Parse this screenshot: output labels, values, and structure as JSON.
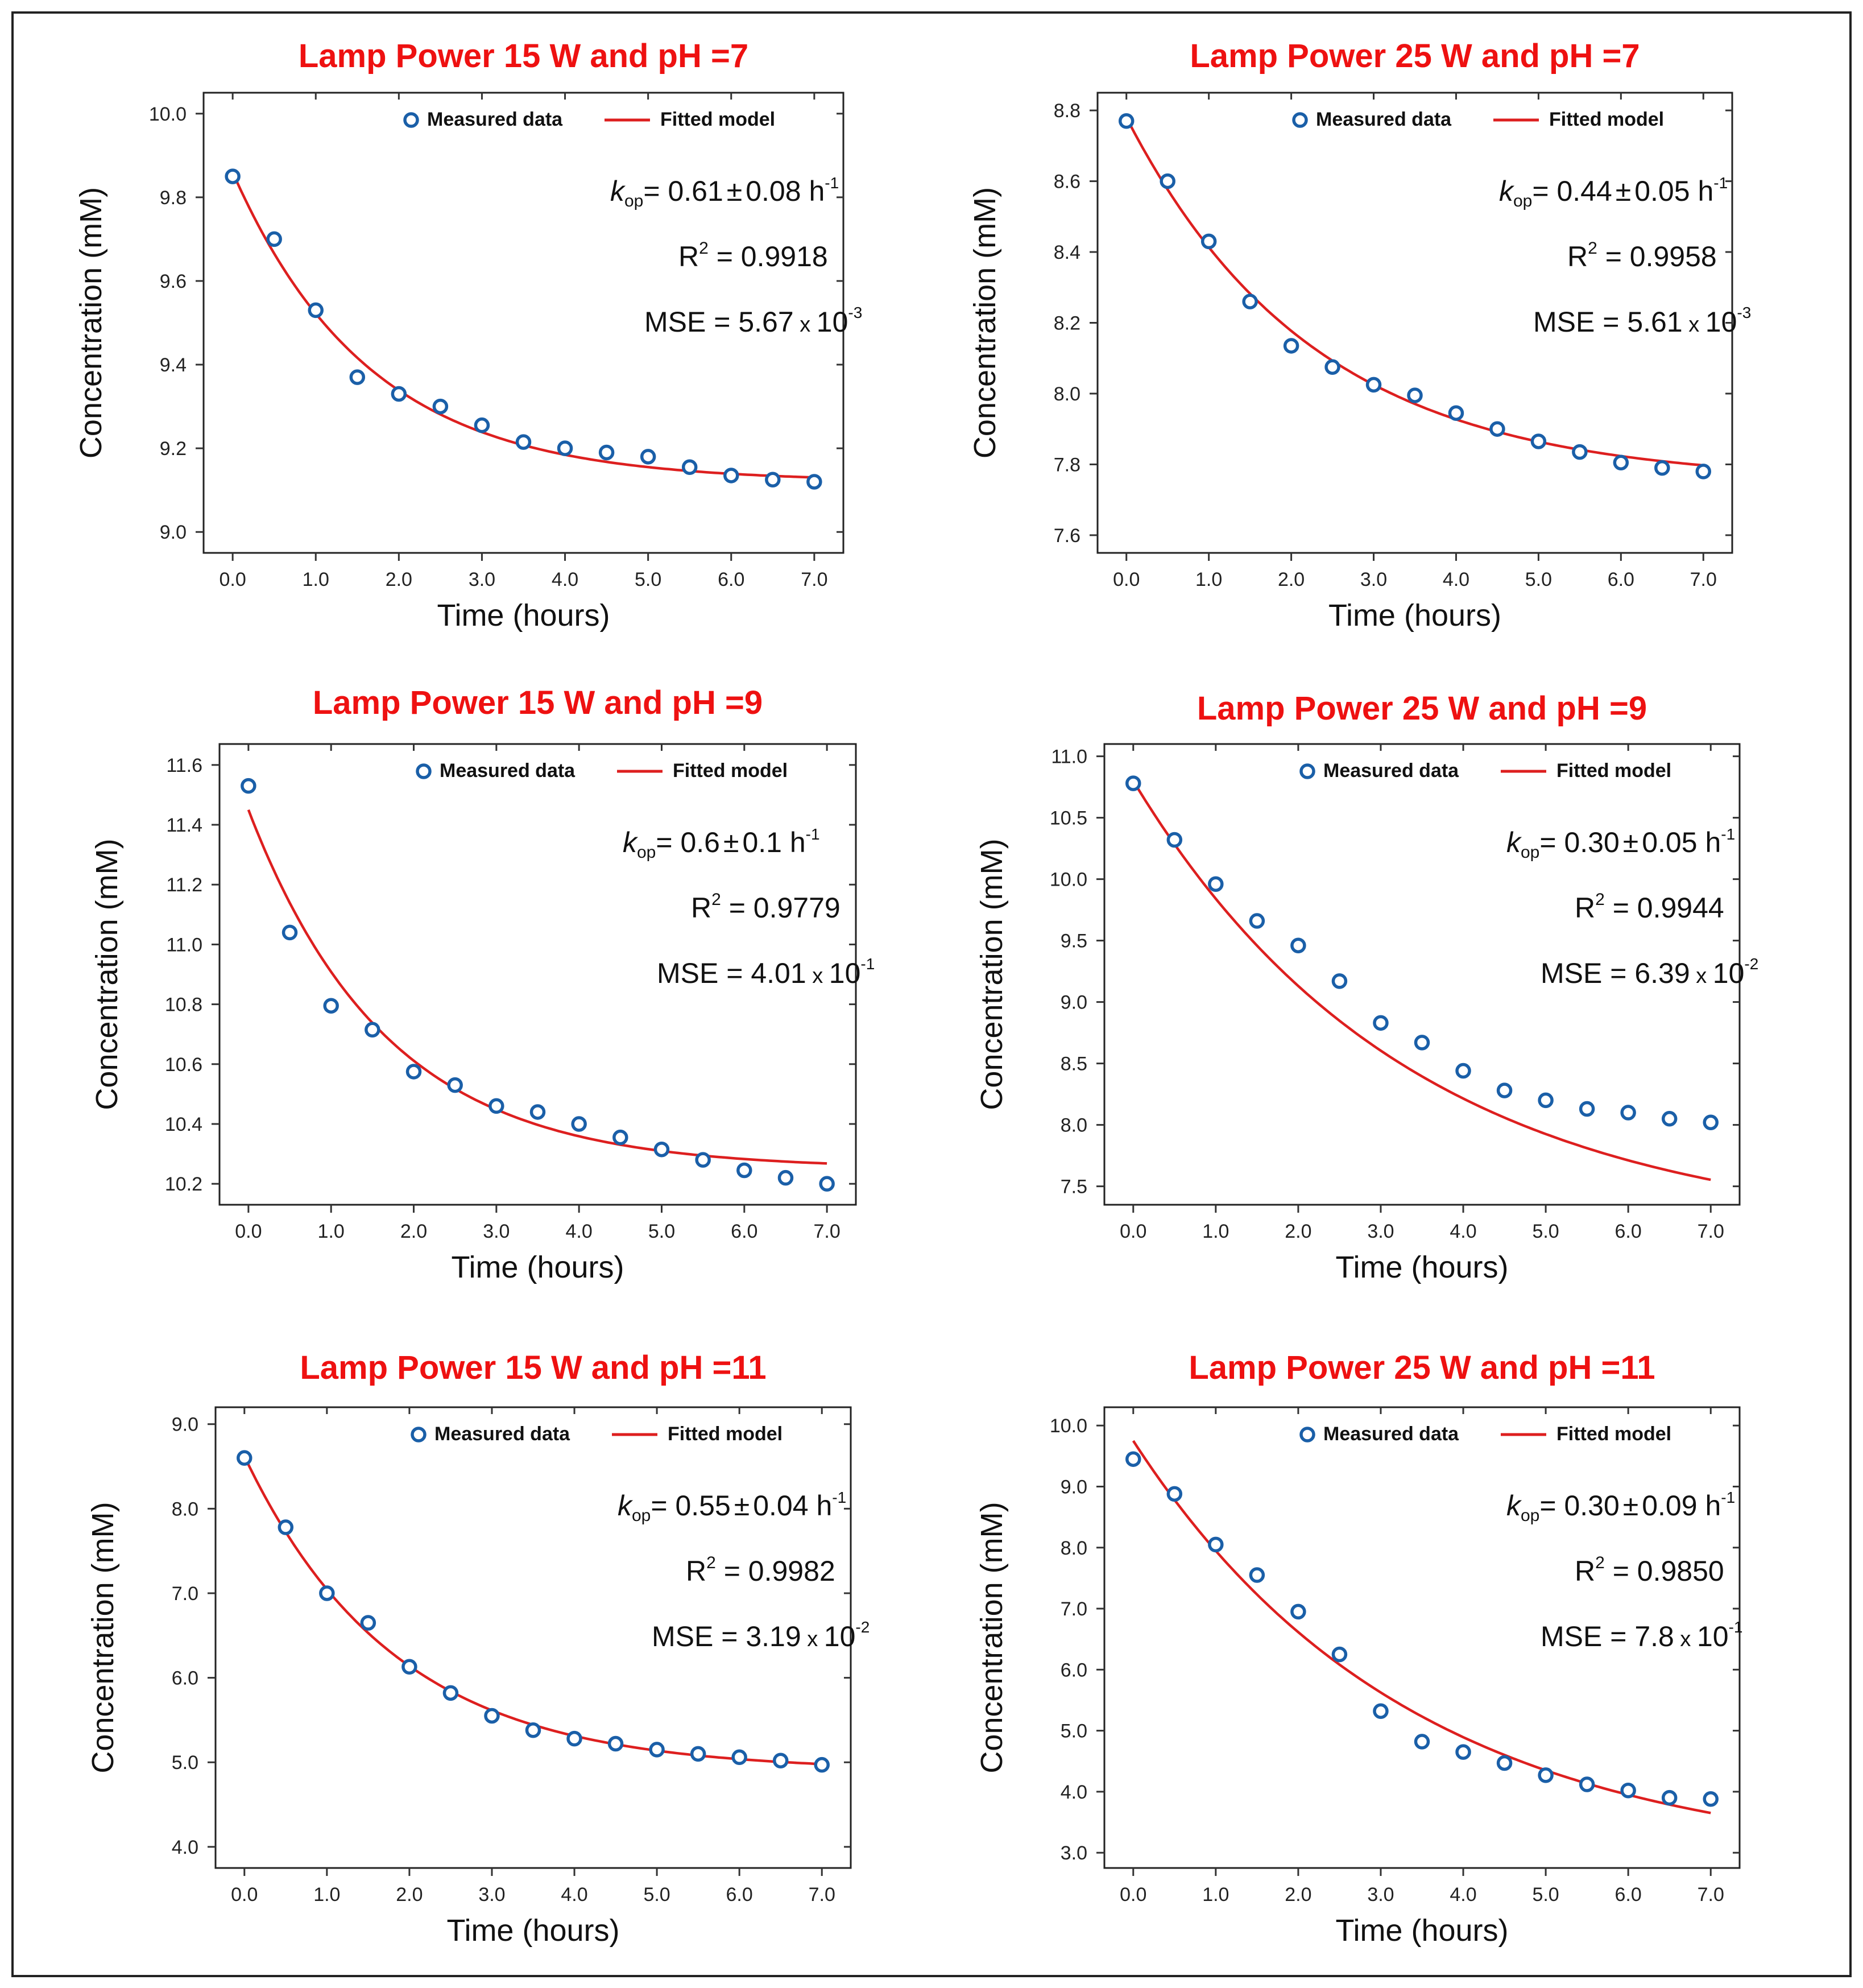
{
  "figure": {
    "frame_color": "#222222",
    "title_color": "#ee1111",
    "marker_color": "#1a5fa8",
    "line_color": "#dd1f1f"
  },
  "legend": {
    "measured": "Measured data",
    "fitted": "Fitted model"
  },
  "chart_data": [
    {
      "type": "scatter",
      "title": "Lamp Power 15 W and pH =7",
      "xlabel": "Time (hours)",
      "ylabel": "Concentration (mM)",
      "xlim": [
        -0.35,
        7.35
      ],
      "ylim": [
        8.95,
        10.05
      ],
      "xticks": [
        "0.0",
        "1.0",
        "2.0",
        "3.0",
        "4.0",
        "5.0",
        "6.0",
        "7.0"
      ],
      "xtick_values": [
        0,
        1,
        2,
        3,
        4,
        5,
        6,
        7
      ],
      "yticks": [
        "9.0",
        "9.2",
        "9.4",
        "9.6",
        "9.8",
        "10.0"
      ],
      "ytick_values": [
        9.0,
        9.2,
        9.4,
        9.6,
        9.8,
        10.0
      ],
      "x": [
        0,
        0.5,
        1,
        1.5,
        2,
        2.5,
        3,
        3.5,
        4,
        4.5,
        5,
        5.5,
        6,
        6.5,
        7
      ],
      "measured": [
        9.85,
        9.7,
        9.53,
        9.37,
        9.33,
        9.3,
        9.255,
        9.215,
        9.2,
        9.19,
        9.18,
        9.155,
        9.135,
        9.125,
        9.12
      ],
      "fit": {
        "c_inf": 9.12,
        "c0": 9.86,
        "k": 0.61
      },
      "kop": {
        "prefix": "k",
        "sub": "op",
        "value": "= 0.61",
        "pm": "±",
        "err": "0.08 h",
        "unit_sup": "-1"
      },
      "r2": {
        "label": "R",
        "sup": "2",
        "value": " = 0.9918"
      },
      "mse": {
        "label": "MSE = 5.67",
        "x": " x ",
        "base": "10",
        "sup": "-3"
      }
    },
    {
      "type": "scatter",
      "title": "Lamp Power 25 W and pH =7",
      "xlabel": "Time (hours)",
      "ylabel": "Concentration (mM)",
      "xlim": [
        -0.35,
        7.35
      ],
      "ylim": [
        7.55,
        8.85
      ],
      "xticks": [
        "0.0",
        "1.0",
        "2.0",
        "3.0",
        "4.0",
        "5.0",
        "6.0",
        "7.0"
      ],
      "xtick_values": [
        0,
        1,
        2,
        3,
        4,
        5,
        6,
        7
      ],
      "yticks": [
        "7.6",
        "7.8",
        "8.0",
        "8.2",
        "8.4",
        "8.6",
        "8.8"
      ],
      "ytick_values": [
        7.6,
        7.8,
        8.0,
        8.2,
        8.4,
        8.6,
        8.8
      ],
      "x": [
        0,
        0.5,
        1,
        1.5,
        2,
        2.5,
        3,
        3.5,
        4,
        4.5,
        5,
        5.5,
        6,
        6.5,
        7
      ],
      "measured": [
        8.77,
        8.6,
        8.43,
        8.26,
        8.135,
        8.075,
        8.025,
        7.995,
        7.945,
        7.9,
        7.865,
        7.835,
        7.805,
        7.79,
        7.78
      ],
      "fit": {
        "c_inf": 7.75,
        "c0": 8.78,
        "k": 0.44
      },
      "kop": {
        "prefix": "k",
        "sub": "op",
        "value": "= 0.44",
        "pm": "±",
        "err": "0.05 h",
        "unit_sup": "-1"
      },
      "r2": {
        "label": "R",
        "sup": "2",
        "value": " = 0.9958"
      },
      "mse": {
        "label": "MSE = 5.61",
        "x": " x ",
        "base": "10",
        "sup": "-3"
      }
    },
    {
      "type": "scatter",
      "title": "Lamp Power 15 W and pH =9",
      "xlabel": "Time (hours)",
      "ylabel": "Concentration (mM)",
      "xlim": [
        -0.35,
        7.35
      ],
      "ylim": [
        10.13,
        11.67
      ],
      "xticks": [
        "0.0",
        "1.0",
        "2.0",
        "3.0",
        "4.0",
        "5.0",
        "6.0",
        "7.0"
      ],
      "xtick_values": [
        0,
        1,
        2,
        3,
        4,
        5,
        6,
        7
      ],
      "yticks": [
        "10.2",
        "10.4",
        "10.6",
        "10.8",
        "11.0",
        "11.2",
        "11.4",
        "11.6"
      ],
      "ytick_values": [
        10.2,
        10.4,
        10.6,
        10.8,
        11.0,
        11.2,
        11.4,
        11.6
      ],
      "x": [
        0,
        0.5,
        1,
        1.5,
        2,
        2.5,
        3,
        3.5,
        4,
        4.5,
        5,
        5.5,
        6,
        6.5,
        7
      ],
      "measured": [
        11.53,
        11.04,
        10.795,
        10.715,
        10.575,
        10.53,
        10.46,
        10.44,
        10.4,
        10.355,
        10.315,
        10.28,
        10.245,
        10.22,
        10.2
      ],
      "fit": {
        "c_inf": 10.25,
        "c0": 11.45,
        "k": 0.6
      },
      "kop": {
        "prefix": "k",
        "sub": "op",
        "value": "= 0.6",
        "pm": "±",
        "err": "0.1 h",
        "unit_sup": "-1"
      },
      "r2": {
        "label": "R",
        "sup": "2",
        "value": " = 0.9779"
      },
      "mse": {
        "label": "MSE = 4.01",
        "x": " x ",
        "base": "10",
        "sup": "-1"
      }
    },
    {
      "type": "scatter",
      "title": "Lamp Power 25 W and pH =9",
      "xlabel": "Time (hours)",
      "ylabel": "Concentration (mM)",
      "xlim": [
        -0.35,
        7.35
      ],
      "ylim": [
        7.35,
        11.1
      ],
      "xticks": [
        "0.0",
        "1.0",
        "2.0",
        "3.0",
        "4.0",
        "5.0",
        "6.0",
        "7.0"
      ],
      "xtick_values": [
        0,
        1,
        2,
        3,
        4,
        5,
        6,
        7
      ],
      "yticks": [
        "7.5",
        "8.0",
        "8.5",
        "9.0",
        "9.5",
        "10.0",
        "10.5",
        "11.0"
      ],
      "ytick_values": [
        7.5,
        8.0,
        8.5,
        9.0,
        9.5,
        10.0,
        10.5,
        11.0
      ],
      "x": [
        0,
        0.5,
        1,
        1.5,
        2,
        2.5,
        3,
        3.5,
        4,
        4.5,
        5,
        5.5,
        6,
        6.5,
        7
      ],
      "measured": [
        10.78,
        10.32,
        9.96,
        9.66,
        9.46,
        9.17,
        8.83,
        8.67,
        8.44,
        8.28,
        8.2,
        8.13,
        8.1,
        8.05,
        8.02
      ],
      "fit": {
        "c_inf": 7.1,
        "c0": 10.8,
        "k": 0.3
      },
      "kop": {
        "prefix": "k",
        "sub": "op",
        "value": "= 0.30",
        "pm": "±",
        "err": "0.05 h",
        "unit_sup": "-1"
      },
      "r2": {
        "label": "R",
        "sup": "2",
        "value": " = 0.9944"
      },
      "mse": {
        "label": "MSE = 6.39",
        "x": " x ",
        "base": "10",
        "sup": "-2"
      }
    },
    {
      "type": "scatter",
      "title": "Lamp Power 15 W and pH =11",
      "xlabel": "Time (hours)",
      "ylabel": "Concentration (mM)",
      "xlim": [
        -0.35,
        7.35
      ],
      "ylim": [
        3.75,
        9.2
      ],
      "xticks": [
        "0.0",
        "1.0",
        "2.0",
        "3.0",
        "4.0",
        "5.0",
        "6.0",
        "7.0"
      ],
      "xtick_values": [
        0,
        1,
        2,
        3,
        4,
        5,
        6,
        7
      ],
      "yticks": [
        "4.0",
        "5.0",
        "6.0",
        "7.0",
        "8.0",
        "9.0"
      ],
      "ytick_values": [
        4.0,
        5.0,
        6.0,
        7.0,
        8.0,
        9.0
      ],
      "x": [
        0,
        0.5,
        1,
        1.5,
        2,
        2.5,
        3,
        3.5,
        4,
        4.5,
        5,
        5.5,
        6,
        6.5,
        7
      ],
      "measured": [
        8.6,
        7.78,
        7.0,
        6.65,
        6.13,
        5.82,
        5.55,
        5.38,
        5.28,
        5.22,
        5.15,
        5.1,
        5.06,
        5.02,
        4.97
      ],
      "fit": {
        "c_inf": 4.9,
        "c0": 8.62,
        "k": 0.55
      },
      "kop": {
        "prefix": "k",
        "sub": "op",
        "value": "= 0.55",
        "pm": "±",
        "err": "0.04 h",
        "unit_sup": "-1"
      },
      "r2": {
        "label": "R",
        "sup": "2",
        "value": " = 0.9982"
      },
      "mse": {
        "label": "MSE = 3.19",
        "x": " x ",
        "base": "10",
        "sup": "-2"
      }
    },
    {
      "type": "scatter",
      "title": "Lamp Power 25 W and pH =11",
      "xlabel": "Time (hours)",
      "ylabel": "Concentration (mM)",
      "xlim": [
        -0.35,
        7.35
      ],
      "ylim": [
        2.75,
        10.3
      ],
      "xticks": [
        "0.0",
        "1.0",
        "2.0",
        "3.0",
        "4.0",
        "5.0",
        "6.0",
        "7.0"
      ],
      "xtick_values": [
        0,
        1,
        2,
        3,
        4,
        5,
        6,
        7
      ],
      "yticks": [
        "3.0",
        "4.0",
        "5.0",
        "6.0",
        "7.0",
        "8.0",
        "9.0",
        "10.0"
      ],
      "ytick_values": [
        3.0,
        4.0,
        5.0,
        6.0,
        7.0,
        8.0,
        9.0,
        10.0
      ],
      "x": [
        0,
        0.5,
        1,
        1.5,
        2,
        2.5,
        3,
        3.5,
        4,
        4.5,
        5,
        5.5,
        6,
        6.5,
        7
      ],
      "measured": [
        9.45,
        8.88,
        8.05,
        7.55,
        6.95,
        6.25,
        5.32,
        4.82,
        4.65,
        4.47,
        4.27,
        4.12,
        4.02,
        3.9,
        3.88
      ],
      "fit": {
        "c_inf": 2.8,
        "c0": 9.75,
        "k": 0.3
      },
      "kop": {
        "prefix": "k",
        "sub": "op",
        "value": "= 0.30",
        "pm": "±",
        "err": "0.09 h",
        "unit_sup": "-1"
      },
      "r2": {
        "label": "R",
        "sup": "2",
        "value": " = 0.9850"
      },
      "mse": {
        "label": "MSE = 7.8",
        "x": " x ",
        "base": "10",
        "sup": "-1"
      }
    }
  ]
}
